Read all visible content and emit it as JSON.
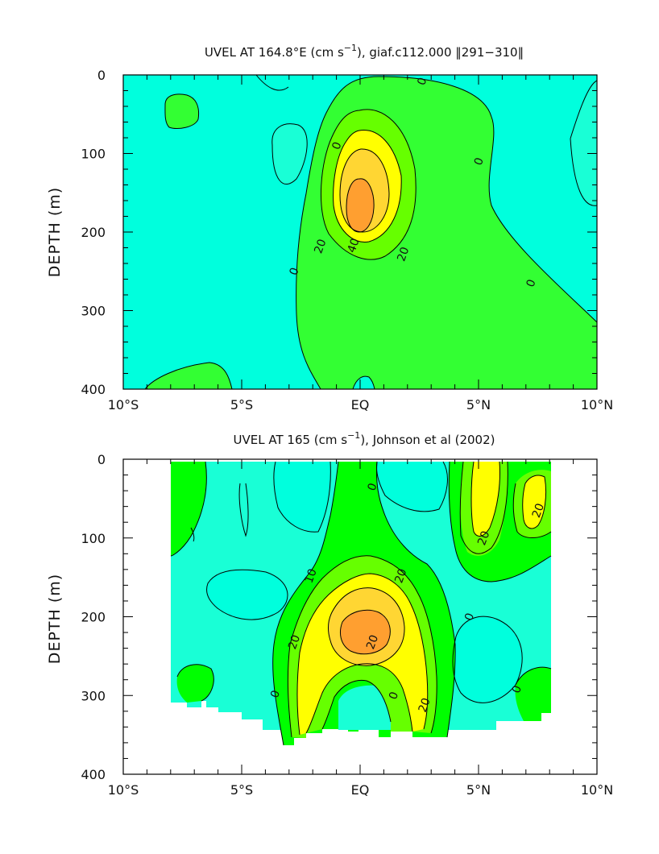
{
  "colors": {
    "neg": "#00ffdd",
    "n20_0": "#19ffd6",
    "p0_10": "#00ff00",
    "p0_10_model": "#33ff33",
    "p10_20": "#66ff00",
    "p20_30": "#ffff00",
    "p30_40": "#ffd633",
    "p40_50": "#ff9f30",
    "line": "#000000"
  },
  "chart_data": [
    {
      "type": "contour",
      "title": "UVEL AT 164.8°E (cm s⁻¹), giaf.c112.000 ‖291–310‖",
      "title_parts": {
        "main": "UVEL AT 164.8°E (cm s",
        "sup": "−1",
        "rest": "), giaf.c112.000 ‖291−310‖"
      },
      "ylabel": "DEPTH (m)",
      "xlabel": "",
      "x_ticks": [
        "10°S",
        "5°S",
        "EQ",
        "5°N",
        "10°N"
      ],
      "y_ticks": [
        "0",
        "100",
        "200",
        "300",
        "400"
      ],
      "xlim": [
        -10,
        10
      ],
      "ylim": [
        0,
        400
      ],
      "contour_interval": 10,
      "contour_labels": [
        {
          "text": "0",
          "lat": 2.6,
          "depth": 8
        },
        {
          "text": "0",
          "lat": -1.0,
          "depth": 90
        },
        {
          "text": "0",
          "lat": 5.0,
          "depth": 110
        },
        {
          "text": "20",
          "lat": -1.7,
          "depth": 218
        },
        {
          "text": "40",
          "lat": -0.3,
          "depth": 217
        },
        {
          "text": "20",
          "lat": 1.8,
          "depth": 228
        },
        {
          "text": "0",
          "lat": -2.8,
          "depth": 250
        },
        {
          "text": "0",
          "lat": 7.2,
          "depth": 265
        }
      ]
    },
    {
      "type": "contour",
      "title": "UVEL AT 165 (cm s⁻¹), Johnson et al (2002)",
      "title_parts": {
        "main": "UVEL AT 165 (cm s",
        "sup": "−1",
        "rest": "), Johnson et al (2002)"
      },
      "ylabel": "DEPTH (m)",
      "xlabel": "",
      "x_ticks": [
        "10°S",
        "5°S",
        "EQ",
        "5°N",
        "10°N"
      ],
      "y_ticks": [
        "0",
        "100",
        "200",
        "300",
        "400"
      ],
      "xlim": [
        -10,
        10
      ],
      "ylim": [
        0,
        400
      ],
      "data_extent_lat": [
        -8,
        8
      ],
      "contour_interval": 10,
      "contour_labels": [
        {
          "text": "0",
          "lat": 0.5,
          "depth": 35
        },
        {
          "text": "20",
          "lat": 5.2,
          "depth": 100
        },
        {
          "text": "20",
          "lat": 7.5,
          "depth": 65
        },
        {
          "text": "10",
          "lat": -2.1,
          "depth": 148
        },
        {
          "text": "20",
          "lat": 1.7,
          "depth": 148
        },
        {
          "text": "0",
          "lat": 4.6,
          "depth": 200
        },
        {
          "text": "20",
          "lat": -2.8,
          "depth": 232
        },
        {
          "text": "20",
          "lat": 0.5,
          "depth": 232
        },
        {
          "text": "0",
          "lat": 1.4,
          "depth": 300
        },
        {
          "text": "20",
          "lat": 2.7,
          "depth": 312
        },
        {
          "text": "0",
          "lat": 6.6,
          "depth": 292
        },
        {
          "text": "0",
          "lat": -3.6,
          "depth": 298
        }
      ]
    }
  ]
}
